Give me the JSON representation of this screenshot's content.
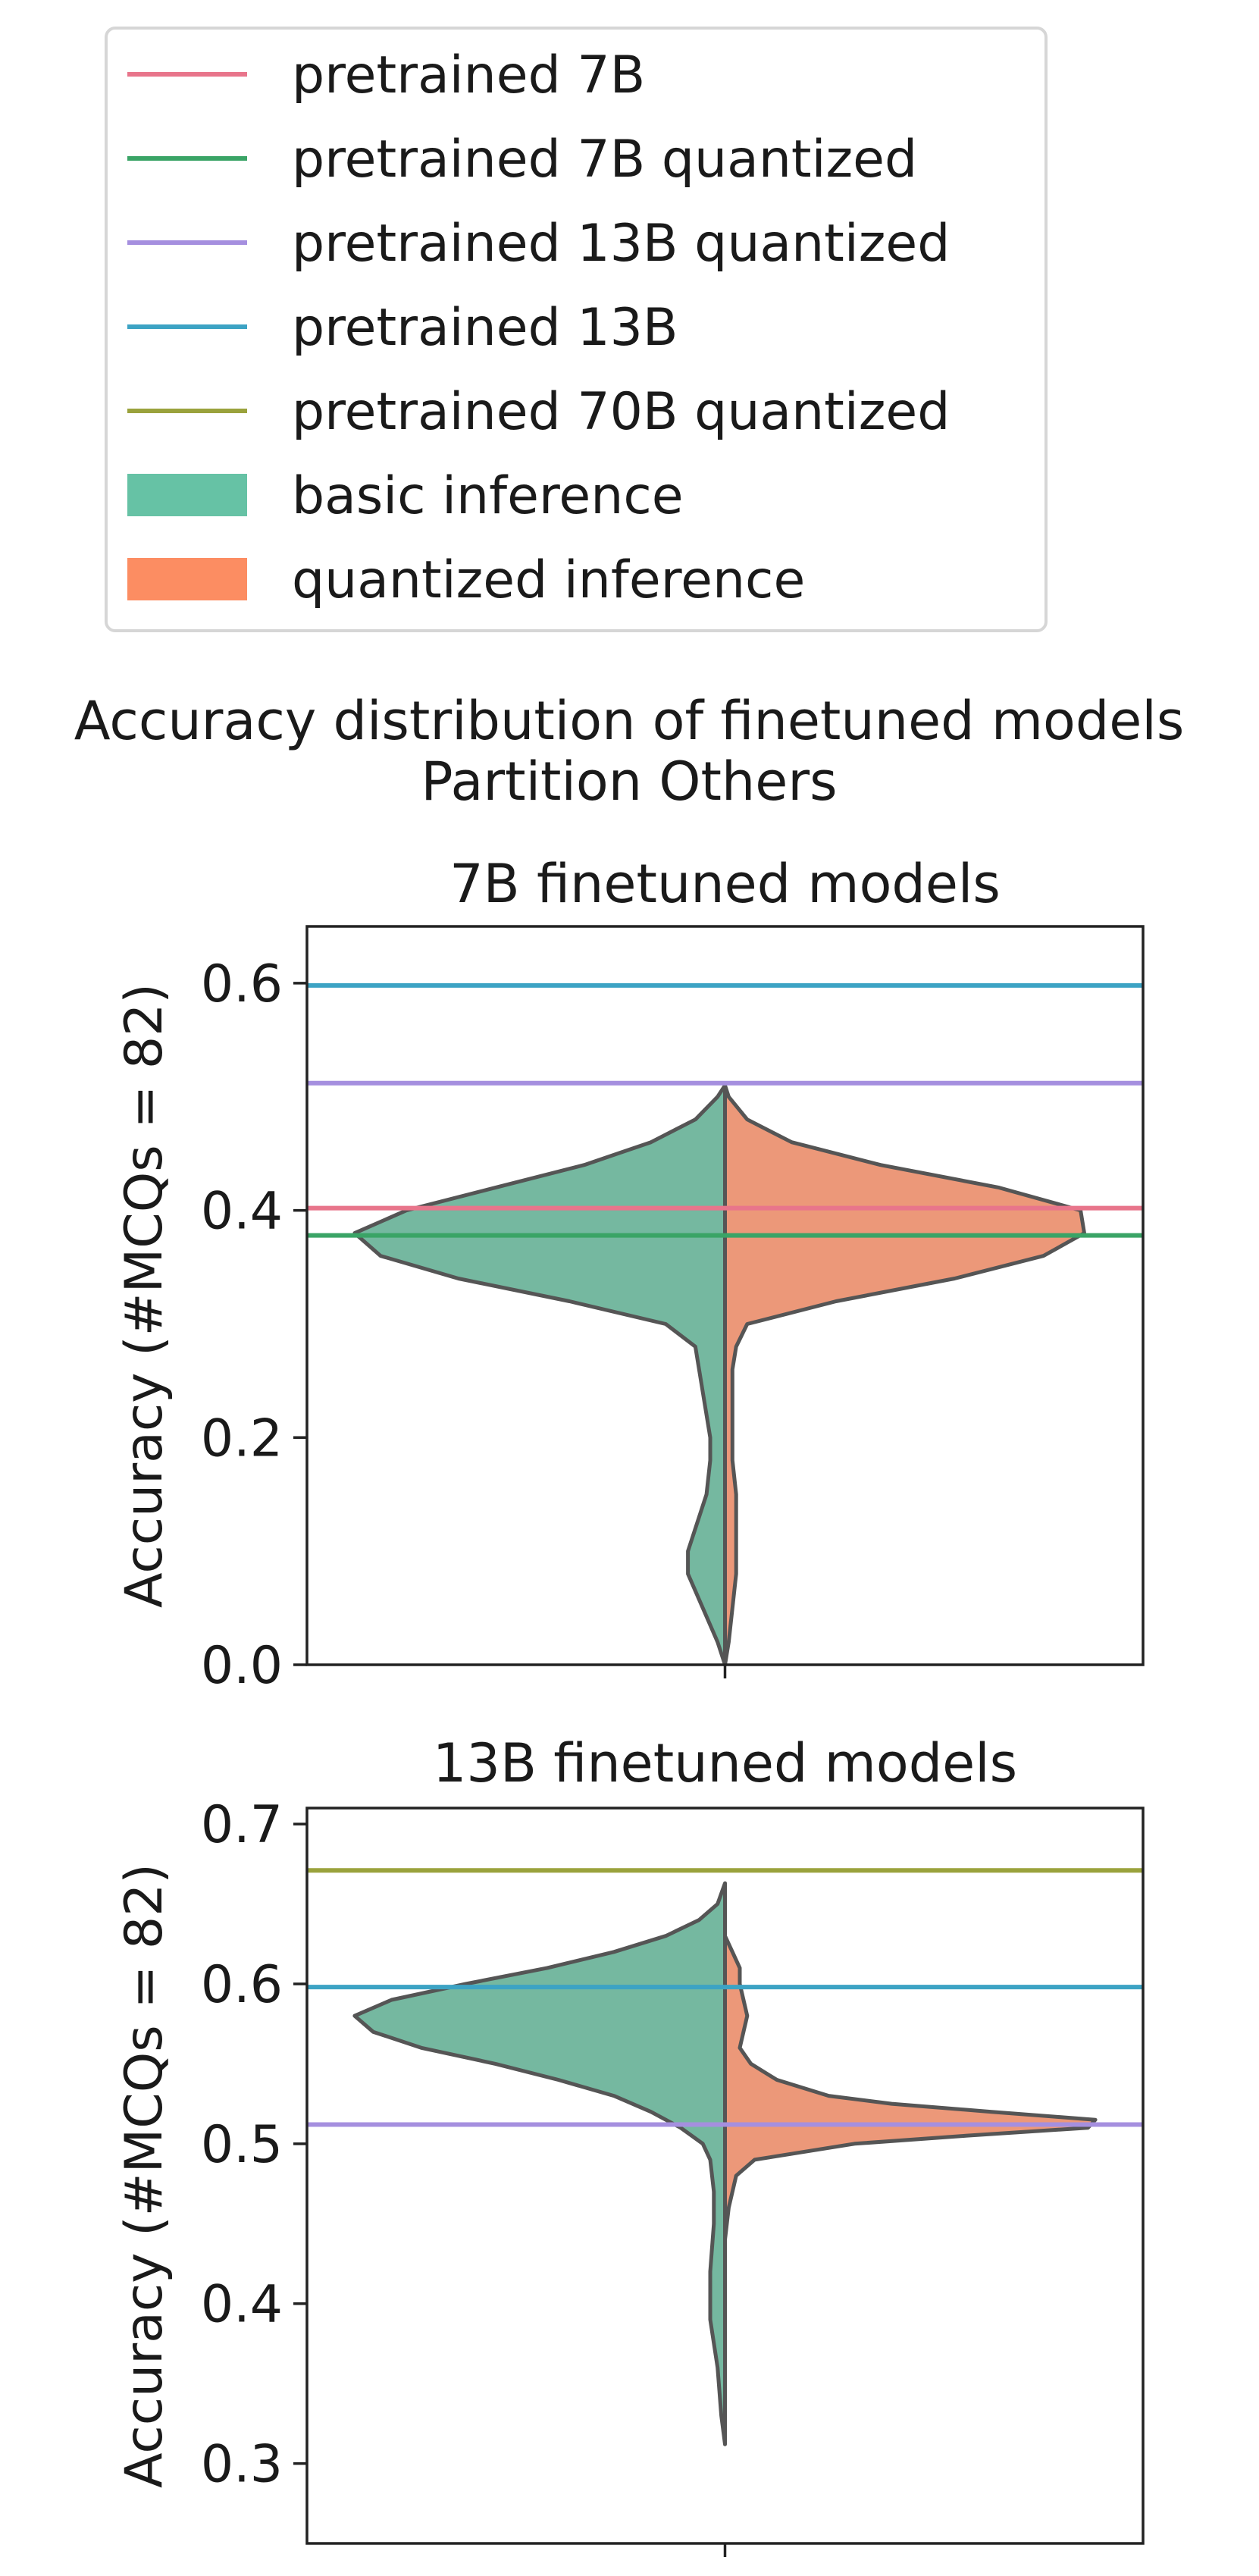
{
  "legend": {
    "placement": "top-center",
    "entries": [
      {
        "label": "pretrained 7B",
        "color": "#e8758b",
        "kind": "line"
      },
      {
        "label": "pretrained 7B quantized",
        "color": "#3aa466",
        "kind": "line"
      },
      {
        "label": "pretrained 13B quantized",
        "color": "#a58fdf",
        "kind": "line"
      },
      {
        "label": "pretrained 13B",
        "color": "#3ca3c4",
        "kind": "line"
      },
      {
        "label": "pretrained 70B quantized",
        "color": "#9aa23c",
        "kind": "line"
      },
      {
        "label": "basic inference",
        "color": "#66c2a5",
        "kind": "patch"
      },
      {
        "label": "quantized inference",
        "color": "#fc8d62",
        "kind": "patch"
      }
    ]
  },
  "suptitle": [
    "Accuracy distribution of finetuned models",
    "Partition Others"
  ],
  "chart_data": [
    {
      "type": "violin",
      "title": "7B finetuned models",
      "ylabel": "Accuracy (#MCQs = 82)",
      "ylim": [
        0.0,
        0.65
      ],
      "yticks": [
        "0.0",
        "0.2",
        "0.4",
        "0.6"
      ],
      "grid": false,
      "hlines": [
        {
          "name": "pretrained 13B",
          "value": 0.598
        },
        {
          "name": "pretrained 13B quantized",
          "value": 0.512
        },
        {
          "name": "pretrained 7B",
          "value": 0.402
        },
        {
          "name": "pretrained 7B quantized",
          "value": 0.378
        }
      ],
      "violins": [
        {
          "name": "basic inference",
          "side": "left",
          "color": "#75b8a0",
          "y": [
            0.0,
            0.02,
            0.05,
            0.08,
            0.1,
            0.12,
            0.15,
            0.18,
            0.2,
            0.22,
            0.24,
            0.26,
            0.28,
            0.3,
            0.32,
            0.34,
            0.36,
            0.38,
            0.4,
            0.42,
            0.44,
            0.46,
            0.48,
            0.5,
            0.51
          ],
          "density": [
            0.0,
            0.02,
            0.06,
            0.1,
            0.1,
            0.08,
            0.05,
            0.04,
            0.04,
            0.05,
            0.06,
            0.07,
            0.08,
            0.16,
            0.42,
            0.72,
            0.93,
            1.0,
            0.86,
            0.62,
            0.38,
            0.2,
            0.08,
            0.02,
            0.0
          ]
        },
        {
          "name": "quantized inference",
          "side": "right",
          "color": "#ec9879",
          "y": [
            0.0,
            0.02,
            0.05,
            0.08,
            0.1,
            0.12,
            0.15,
            0.18,
            0.2,
            0.22,
            0.24,
            0.26,
            0.28,
            0.3,
            0.32,
            0.34,
            0.36,
            0.38,
            0.4,
            0.42,
            0.44,
            0.46,
            0.48,
            0.5,
            0.51
          ],
          "density": [
            0.0,
            0.01,
            0.02,
            0.03,
            0.03,
            0.03,
            0.03,
            0.02,
            0.02,
            0.02,
            0.02,
            0.02,
            0.03,
            0.06,
            0.3,
            0.62,
            0.86,
            0.97,
            0.96,
            0.74,
            0.42,
            0.18,
            0.06,
            0.01,
            0.0
          ]
        }
      ]
    },
    {
      "type": "violin",
      "title": "13B finetuned models",
      "ylabel": "Accuracy (#MCQs = 82)",
      "ylim": [
        0.25,
        0.71
      ],
      "yticks": [
        "0.3",
        "0.4",
        "0.5",
        "0.6",
        "0.7"
      ],
      "grid": false,
      "hlines": [
        {
          "name": "pretrained 70B quantized",
          "value": 0.671
        },
        {
          "name": "pretrained 13B",
          "value": 0.598
        },
        {
          "name": "pretrained 13B quantized",
          "value": 0.512
        }
      ],
      "violins": [
        {
          "name": "basic inference",
          "side": "left",
          "color": "#75b8a0",
          "y": [
            0.312,
            0.33,
            0.36,
            0.39,
            0.42,
            0.45,
            0.47,
            0.49,
            0.5,
            0.51,
            0.52,
            0.53,
            0.54,
            0.55,
            0.56,
            0.57,
            0.58,
            0.59,
            0.6,
            0.61,
            0.62,
            0.63,
            0.64,
            0.65,
            0.663
          ],
          "density": [
            0.0,
            0.01,
            0.02,
            0.04,
            0.04,
            0.03,
            0.03,
            0.04,
            0.06,
            0.12,
            0.2,
            0.3,
            0.45,
            0.62,
            0.82,
            0.95,
            1.0,
            0.9,
            0.7,
            0.48,
            0.3,
            0.16,
            0.07,
            0.02,
            0.0
          ]
        },
        {
          "name": "quantized inference",
          "side": "right",
          "color": "#ec9879",
          "y": [
            0.44,
            0.46,
            0.48,
            0.49,
            0.5,
            0.505,
            0.51,
            0.515,
            0.52,
            0.525,
            0.53,
            0.54,
            0.55,
            0.56,
            0.57,
            0.58,
            0.59,
            0.6,
            0.61,
            0.62,
            0.63
          ],
          "density": [
            0.0,
            0.01,
            0.03,
            0.08,
            0.35,
            0.65,
            0.98,
            1.0,
            0.72,
            0.45,
            0.28,
            0.14,
            0.07,
            0.04,
            0.05,
            0.06,
            0.05,
            0.04,
            0.04,
            0.02,
            0.0
          ]
        }
      ]
    }
  ]
}
